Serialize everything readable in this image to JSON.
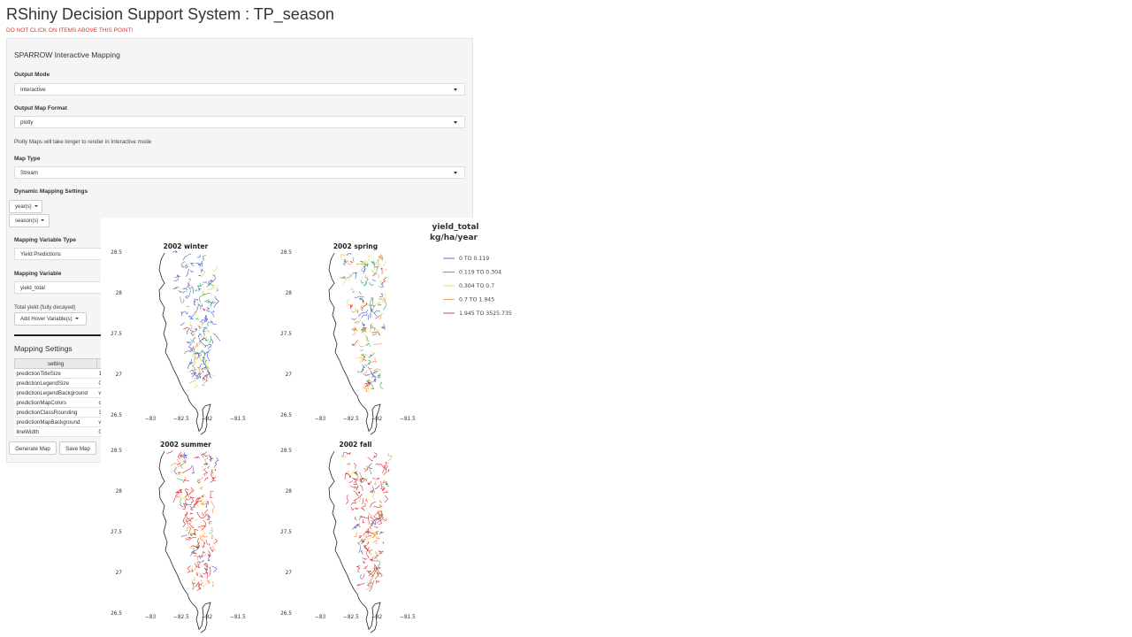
{
  "app": {
    "title": "RShiny Decision Support System : TP_season",
    "warning": "DO NOT CLICK ON ITEMS ABOVE THIS POINT!"
  },
  "panel": {
    "title": "SPARROW Interactive Mapping",
    "output_mode": {
      "label": "Output Mode",
      "value": "Interactive"
    },
    "output_format": {
      "label": "Output Map Format",
      "value": "plotly"
    },
    "plotly_note": "Plotly Maps will take longer to render in Interactive mode",
    "map_type": {
      "label": "Map Type",
      "value": "Stream"
    },
    "dynamic": {
      "label": "Dynamic Mapping Settings",
      "year_btn": "year(s)",
      "season_btn": "season(s)"
    },
    "var_type": {
      "label": "Mapping Variable Type",
      "value": "Yield Predictions"
    },
    "var": {
      "label": "Mapping Variable",
      "value": "yield_total"
    },
    "var_desc": "Total yield (fully decayed)",
    "hover_btn": "Add Hover Variable(s)",
    "settings": {
      "title": "Mapping Settings",
      "header": "setting",
      "rows": [
        {
          "setting": "predictionTitleSize",
          "value": "1"
        },
        {
          "setting": "predictionLegendSize",
          "value": "0"
        },
        {
          "setting": "predictionLegendBackground",
          "value": "w"
        },
        {
          "setting": "predictionMapColors",
          "value": "c"
        },
        {
          "setting": "predictionClassRounding",
          "value": "3"
        },
        {
          "setting": "predictionMapBackground",
          "value": "w"
        },
        {
          "setting": "lineWidth",
          "value": "0"
        }
      ]
    },
    "generate_btn": "Generate Map",
    "save_btn": "Save Map"
  },
  "map": {
    "legend": {
      "title_line1": "yield_total",
      "title_line2": "kg/ha/year",
      "items": [
        {
          "label": "0 TO 0.119",
          "color": "#3b4cc0"
        },
        {
          "label": "0.119 TO 0.304",
          "color": "#2ca25f"
        },
        {
          "label": "0.304 TO 0.7",
          "color": "#e6d545"
        },
        {
          "label": "0.7 TO 1.945",
          "color": "#f08a3c"
        },
        {
          "label": "1.945 TO 3525.735",
          "color": "#d7191c"
        }
      ]
    },
    "y_ticks": [
      "28.5",
      "28",
      "27.5",
      "27",
      "26.5"
    ],
    "x_ticks": [
      "−83",
      "−82.5",
      "−82",
      "−81.5"
    ],
    "panels": [
      {
        "title": "2002 winter",
        "mix": [
          0.55,
          0.18,
          0.15,
          0.08,
          0.04
        ]
      },
      {
        "title": "2002 spring",
        "mix": [
          0.22,
          0.22,
          0.28,
          0.18,
          0.1
        ]
      },
      {
        "title": "2002 summer",
        "mix": [
          0.1,
          0.06,
          0.12,
          0.22,
          0.5
        ]
      },
      {
        "title": "2002 fall",
        "mix": [
          0.08,
          0.05,
          0.12,
          0.2,
          0.55
        ]
      }
    ]
  }
}
